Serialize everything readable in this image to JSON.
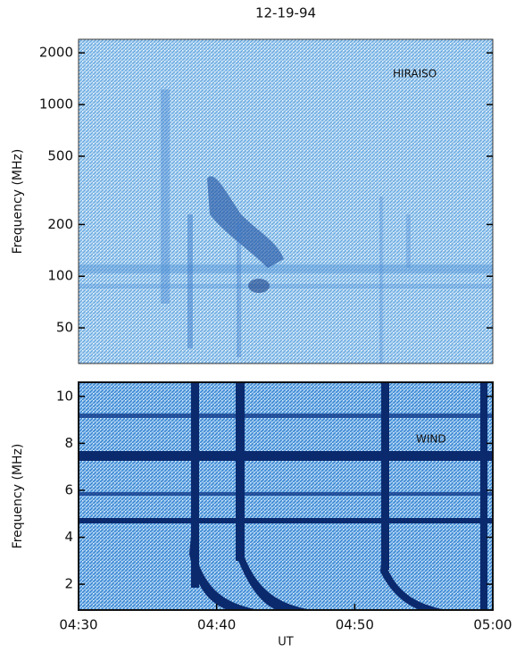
{
  "chart_data": [
    {
      "type": "spectrogram",
      "title": "12-19-94",
      "y_label": "Frequency (MHz)",
      "annotation": "HIRAISO",
      "log_y": true,
      "ylim": [
        31,
        2400
      ],
      "yticks": [
        50,
        100,
        200,
        500,
        1000,
        2000
      ],
      "xlim": [
        "04:30",
        "05:00"
      ]
    },
    {
      "type": "spectrogram",
      "y_label": "Frequency (MHz)",
      "annotation": "WIND",
      "log_y": false,
      "ylim": [
        0.9,
        10.6
      ],
      "yticks": [
        2,
        4,
        6,
        8,
        10
      ],
      "xlim": [
        "04:30",
        "05:00"
      ],
      "xticks": [
        "04:30",
        "04:40",
        "04:50",
        "05:00"
      ],
      "x_label": "UT"
    }
  ]
}
